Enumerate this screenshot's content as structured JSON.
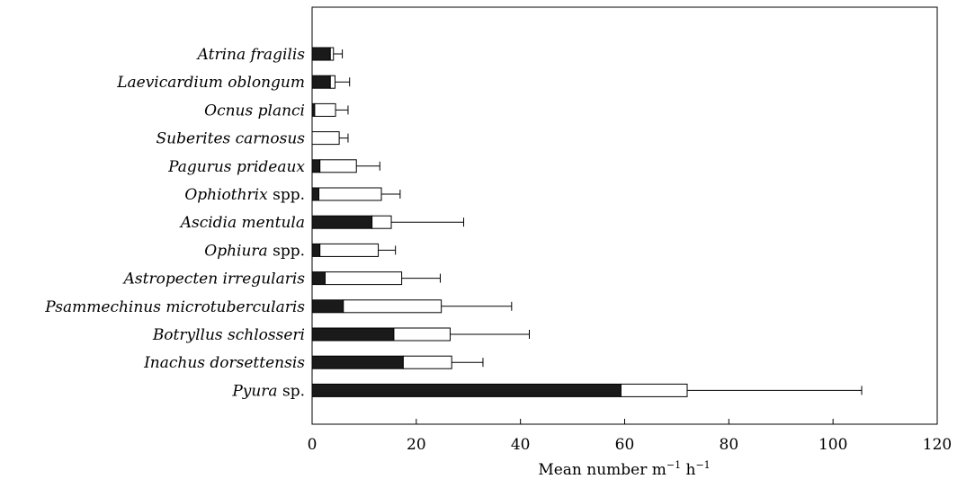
{
  "chart_data": {
    "type": "bar",
    "orientation": "horizontal",
    "stacked": true,
    "categories": [
      {
        "italic": "Atrina fragilis",
        "suffix": ""
      },
      {
        "italic": "Laevicardium oblongum",
        "suffix": ""
      },
      {
        "italic": "Ocnus planci",
        "suffix": ""
      },
      {
        "italic": "Suberites carnosus",
        "suffix": ""
      },
      {
        "italic": "Pagurus prideaux",
        "suffix": ""
      },
      {
        "italic": "Ophiothrix",
        "suffix": " spp."
      },
      {
        "italic": "Ascidia mentula",
        "suffix": ""
      },
      {
        "italic": "Ophiura",
        "suffix": " spp."
      },
      {
        "italic": "Astropecten irregularis",
        "suffix": ""
      },
      {
        "italic": "Psammechinus microtubercularis",
        "suffix": ""
      },
      {
        "italic": "Botryllus schlosseri",
        "suffix": ""
      },
      {
        "italic": "Inachus dorsettensis",
        "suffix": ""
      },
      {
        "italic": "Pyura",
        "suffix": " sp."
      }
    ],
    "series": [
      {
        "fill": "#1a1a1a",
        "values": [
          3.5,
          3.5,
          0.5,
          0,
          1.5,
          1.3,
          11.5,
          1.5,
          2.5,
          6.0,
          15.7,
          17.5,
          59.3
        ]
      },
      {
        "fill": "#ffffff",
        "values": [
          0.6,
          0.9,
          4.0,
          5.2,
          7.0,
          12.0,
          3.7,
          11.2,
          14.7,
          18.8,
          10.8,
          9.3,
          12.7
        ]
      }
    ],
    "errors": [
      1.7,
      2.8,
      2.4,
      1.7,
      4.5,
      3.6,
      13.9,
      3.3,
      7.4,
      13.5,
      15.2,
      6.0,
      33.5
    ],
    "xlim": [
      0,
      120
    ],
    "xticks": [
      "0",
      "20",
      "40",
      "60",
      "80",
      "100",
      "120"
    ],
    "xlabel": "Mean number m",
    "xlabel_sup1": "−1",
    "xlabel_mid": " h",
    "xlabel_sup2": "−1",
    "ylabel": "",
    "grid": false,
    "colors": {
      "bar_dark": "#1a1a1a",
      "bar_light": "#ffffff",
      "stroke": "#000000"
    }
  }
}
